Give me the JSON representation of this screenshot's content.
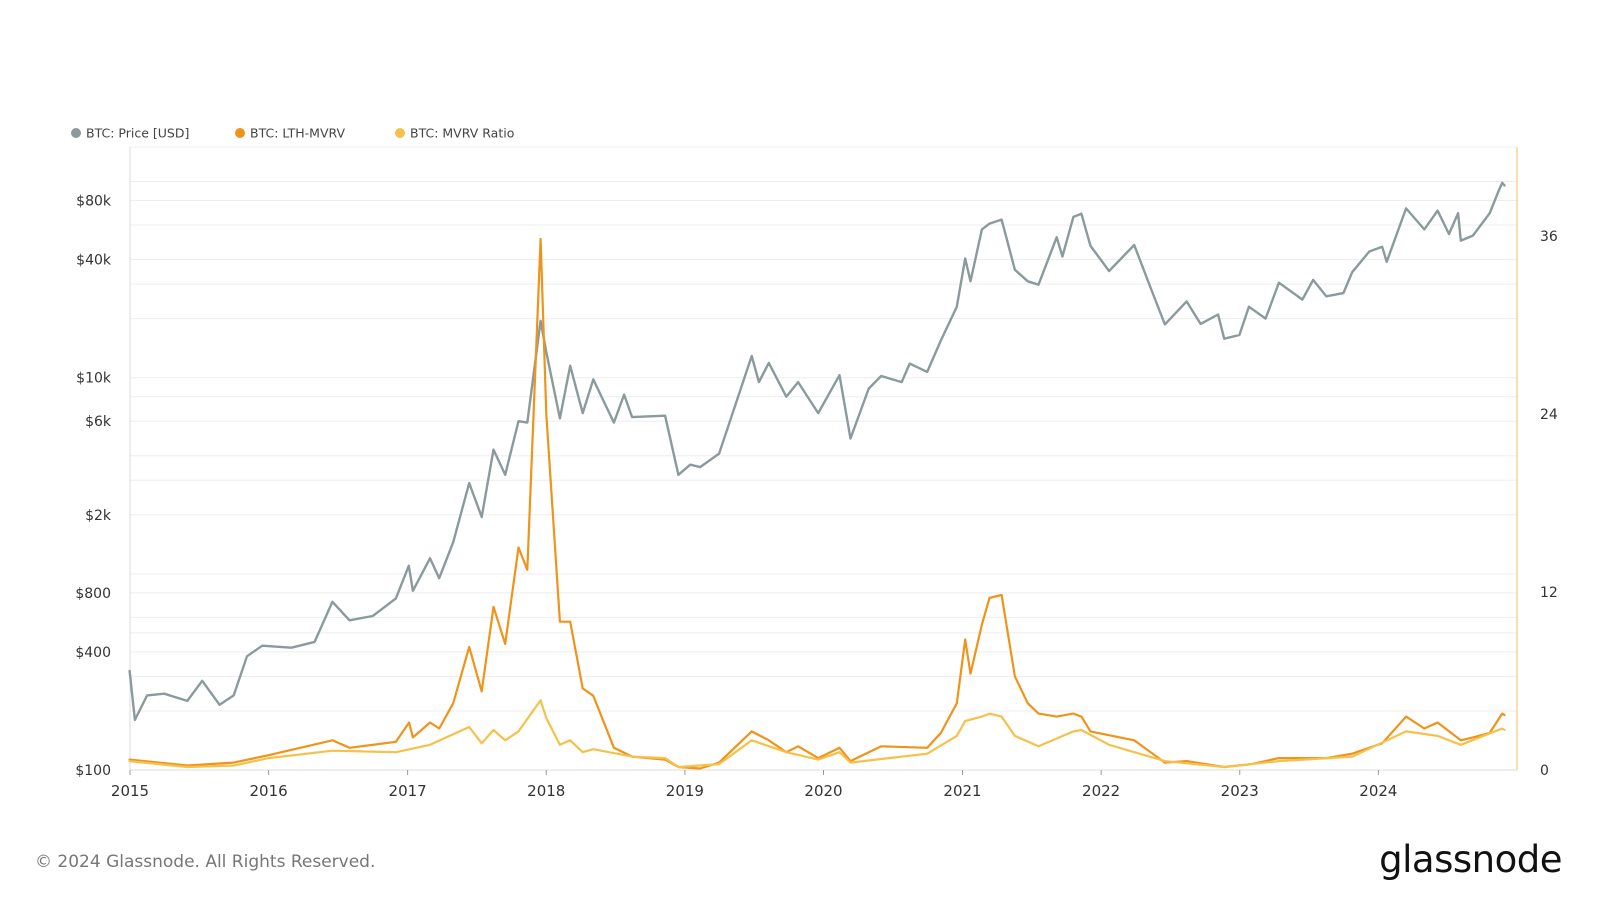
{
  "footer": {
    "copyright": "© 2024 Glassnode. All Rights Reserved.",
    "brand": "glassnode"
  },
  "colors": {
    "price": "#8b9a9c",
    "lth_mvrv": "#f0931a",
    "mvrv": "#f5c14b",
    "grid": "#ededed",
    "right_axis_line": "#f7d49a"
  },
  "chart_data": {
    "type": "line",
    "legend_position": "top-left",
    "grid": true,
    "y_left": {
      "scale": "log",
      "range": [
        100,
        150000
      ],
      "ticks": [
        {
          "value": 100,
          "label": "$100"
        },
        {
          "value": 400,
          "label": "$400"
        },
        {
          "value": 800,
          "label": "$800"
        },
        {
          "value": 2000,
          "label": "$2k"
        },
        {
          "value": 6000,
          "label": "$6k"
        },
        {
          "value": 10000,
          "label": "$10k"
        },
        {
          "value": 40000,
          "label": "$40k"
        },
        {
          "value": 80000,
          "label": "$80k"
        }
      ]
    },
    "y_right": {
      "scale": "linear",
      "range": [
        0,
        42
      ],
      "ticks": [
        {
          "value": 0,
          "label": "0"
        },
        {
          "value": 12,
          "label": "12"
        },
        {
          "value": 24,
          "label": "24"
        },
        {
          "value": 36,
          "label": "36"
        }
      ]
    },
    "x_axis": {
      "range": [
        "2015-01-01",
        "2024-12-31"
      ],
      "ticks": [
        {
          "value": "2015-01-01",
          "label": "2015"
        },
        {
          "value": "2016-01-01",
          "label": "2016"
        },
        {
          "value": "2017-01-01",
          "label": "2017"
        },
        {
          "value": "2018-01-01",
          "label": "2018"
        },
        {
          "value": "2019-01-01",
          "label": "2019"
        },
        {
          "value": "2020-01-01",
          "label": "2020"
        },
        {
          "value": "2021-01-01",
          "label": "2021"
        },
        {
          "value": "2022-01-01",
          "label": "2022"
        },
        {
          "value": "2023-01-01",
          "label": "2023"
        },
        {
          "value": "2024-01-01",
          "label": "2024"
        }
      ]
    },
    "series": [
      {
        "name": "BTC: Price [USD]",
        "axis": "left",
        "color": "#8b9a9c",
        "points": [
          [
            "2014-12-31",
            320
          ],
          [
            "2015-01-14",
            180
          ],
          [
            "2015-02-15",
            240
          ],
          [
            "2015-04-01",
            245
          ],
          [
            "2015-06-01",
            225
          ],
          [
            "2015-07-10",
            285
          ],
          [
            "2015-08-25",
            215
          ],
          [
            "2015-10-01",
            240
          ],
          [
            "2015-11-05",
            380
          ],
          [
            "2015-12-15",
            430
          ],
          [
            "2016-03-01",
            420
          ],
          [
            "2016-05-01",
            450
          ],
          [
            "2016-06-17",
            720
          ],
          [
            "2016-08-01",
            580
          ],
          [
            "2016-10-01",
            610
          ],
          [
            "2016-12-01",
            750
          ],
          [
            "2017-01-04",
            1100
          ],
          [
            "2017-01-15",
            820
          ],
          [
            "2017-03-01",
            1200
          ],
          [
            "2017-03-25",
            950
          ],
          [
            "2017-05-01",
            1450
          ],
          [
            "2017-06-12",
            2900
          ],
          [
            "2017-07-15",
            1950
          ],
          [
            "2017-08-15",
            4300
          ],
          [
            "2017-09-15",
            3200
          ],
          [
            "2017-10-20",
            6000
          ],
          [
            "2017-11-12",
            5900
          ],
          [
            "2017-12-17",
            19500
          ],
          [
            "2018-01-01",
            13500
          ],
          [
            "2018-02-06",
            6200
          ],
          [
            "2018-03-05",
            11500
          ],
          [
            "2018-04-07",
            6600
          ],
          [
            "2018-05-05",
            9800
          ],
          [
            "2018-06-28",
            5900
          ],
          [
            "2018-07-25",
            8200
          ],
          [
            "2018-08-15",
            6300
          ],
          [
            "2018-11-10",
            6400
          ],
          [
            "2018-12-15",
            3200
          ],
          [
            "2019-01-15",
            3600
          ],
          [
            "2019-02-10",
            3500
          ],
          [
            "2019-04-01",
            4100
          ],
          [
            "2019-06-26",
            12900
          ],
          [
            "2019-07-15",
            9500
          ],
          [
            "2019-08-10",
            11900
          ],
          [
            "2019-09-25",
            8000
          ],
          [
            "2019-10-26",
            9500
          ],
          [
            "2019-12-18",
            6600
          ],
          [
            "2020-02-12",
            10300
          ],
          [
            "2020-03-12",
            4900
          ],
          [
            "2020-04-29",
            8800
          ],
          [
            "2020-06-01",
            10200
          ],
          [
            "2020-07-25",
            9500
          ],
          [
            "2020-08-15",
            11800
          ],
          [
            "2020-09-30",
            10700
          ],
          [
            "2020-11-05",
            15500
          ],
          [
            "2020-12-17",
            23000
          ],
          [
            "2021-01-08",
            40500
          ],
          [
            "2021-01-22",
            31000
          ],
          [
            "2021-02-21",
            57000
          ],
          [
            "2021-03-13",
            61000
          ],
          [
            "2021-04-14",
            64000
          ],
          [
            "2021-05-19",
            35500
          ],
          [
            "2021-06-22",
            31000
          ],
          [
            "2021-07-20",
            29800
          ],
          [
            "2021-09-06",
            52000
          ],
          [
            "2021-09-21",
            41500
          ],
          [
            "2021-10-20",
            66000
          ],
          [
            "2021-11-10",
            68500
          ],
          [
            "2021-12-04",
            47000
          ],
          [
            "2022-01-22",
            35000
          ],
          [
            "2022-03-29",
            47500
          ],
          [
            "2022-05-12",
            28500
          ],
          [
            "2022-06-18",
            18700
          ],
          [
            "2022-08-14",
            24500
          ],
          [
            "2022-09-20",
            18800
          ],
          [
            "2022-11-05",
            21000
          ],
          [
            "2022-11-21",
            15800
          ],
          [
            "2022-12-31",
            16500
          ],
          [
            "2023-01-25",
            23000
          ],
          [
            "2023-03-10",
            20000
          ],
          [
            "2023-04-14",
            30500
          ],
          [
            "2023-06-15",
            25000
          ],
          [
            "2023-07-13",
            31500
          ],
          [
            "2023-08-17",
            26000
          ],
          [
            "2023-10-01",
            27000
          ],
          [
            "2023-10-24",
            34500
          ],
          [
            "2023-12-08",
            44000
          ],
          [
            "2024-01-11",
            46500
          ],
          [
            "2024-01-23",
            39000
          ],
          [
            "2024-03-14",
            73000
          ],
          [
            "2024-05-01",
            57000
          ],
          [
            "2024-06-05",
            71000
          ],
          [
            "2024-07-05",
            54000
          ],
          [
            "2024-07-29",
            69000
          ],
          [
            "2024-08-05",
            50000
          ],
          [
            "2024-09-06",
            53000
          ],
          [
            "2024-10-20",
            69000
          ],
          [
            "2024-11-13",
            90000
          ],
          [
            "2024-11-22",
            98500
          ],
          [
            "2024-11-28",
            95500
          ]
        ]
      },
      {
        "name": "BTC: LTH-MVRV",
        "axis": "right",
        "color": "#f0931a",
        "points": [
          [
            "2014-12-31",
            0.7
          ],
          [
            "2015-06-01",
            0.3
          ],
          [
            "2015-10-01",
            0.5
          ],
          [
            "2016-01-01",
            1.0
          ],
          [
            "2016-06-17",
            2.0
          ],
          [
            "2016-08-01",
            1.5
          ],
          [
            "2016-12-01",
            1.9
          ],
          [
            "2017-01-05",
            3.2
          ],
          [
            "2017-01-15",
            2.2
          ],
          [
            "2017-03-01",
            3.2
          ],
          [
            "2017-03-25",
            2.8
          ],
          [
            "2017-05-01",
            4.5
          ],
          [
            "2017-06-12",
            8.3
          ],
          [
            "2017-07-15",
            5.3
          ],
          [
            "2017-08-15",
            11.0
          ],
          [
            "2017-09-15",
            8.5
          ],
          [
            "2017-10-20",
            15.0
          ],
          [
            "2017-11-12",
            13.5
          ],
          [
            "2017-12-17",
            35.8
          ],
          [
            "2018-01-01",
            24.0
          ],
          [
            "2018-02-06",
            10.0
          ],
          [
            "2018-03-05",
            10.0
          ],
          [
            "2018-04-07",
            5.5
          ],
          [
            "2018-05-05",
            5.0
          ],
          [
            "2018-06-28",
            1.5
          ],
          [
            "2018-08-15",
            0.9
          ],
          [
            "2018-11-10",
            0.7
          ],
          [
            "2018-12-15",
            0.2
          ],
          [
            "2019-02-10",
            0.1
          ],
          [
            "2019-04-01",
            0.5
          ],
          [
            "2019-06-26",
            2.6
          ],
          [
            "2019-08-10",
            2.0
          ],
          [
            "2019-09-25",
            1.2
          ],
          [
            "2019-10-26",
            1.6
          ],
          [
            "2019-12-18",
            0.8
          ],
          [
            "2020-02-12",
            1.5
          ],
          [
            "2020-03-12",
            0.6
          ],
          [
            "2020-06-01",
            1.6
          ],
          [
            "2020-09-30",
            1.5
          ],
          [
            "2020-11-05",
            2.5
          ],
          [
            "2020-12-17",
            4.5
          ],
          [
            "2021-01-08",
            8.8
          ],
          [
            "2021-01-22",
            6.5
          ],
          [
            "2021-02-21",
            9.8
          ],
          [
            "2021-03-13",
            11.6
          ],
          [
            "2021-04-14",
            11.8
          ],
          [
            "2021-05-19",
            6.3
          ],
          [
            "2021-06-22",
            4.5
          ],
          [
            "2021-07-20",
            3.8
          ],
          [
            "2021-09-06",
            3.6
          ],
          [
            "2021-10-20",
            3.8
          ],
          [
            "2021-11-10",
            3.6
          ],
          [
            "2021-12-04",
            2.6
          ],
          [
            "2022-03-29",
            2.0
          ],
          [
            "2022-06-18",
            0.5
          ],
          [
            "2022-08-14",
            0.6
          ],
          [
            "2022-11-21",
            0.2
          ],
          [
            "2023-02-01",
            0.4
          ],
          [
            "2023-04-14",
            0.8
          ],
          [
            "2023-08-17",
            0.8
          ],
          [
            "2023-10-24",
            1.1
          ],
          [
            "2024-01-11",
            1.8
          ],
          [
            "2024-03-14",
            3.6
          ],
          [
            "2024-05-01",
            2.8
          ],
          [
            "2024-06-05",
            3.2
          ],
          [
            "2024-08-05",
            2.0
          ],
          [
            "2024-09-06",
            2.2
          ],
          [
            "2024-10-20",
            2.5
          ],
          [
            "2024-11-22",
            3.8
          ],
          [
            "2024-11-28",
            3.7
          ]
        ]
      },
      {
        "name": "BTC: MVRV Ratio",
        "axis": "right",
        "color": "#f5c14b",
        "points": [
          [
            "2014-12-31",
            0.6
          ],
          [
            "2015-06-01",
            0.2
          ],
          [
            "2015-10-01",
            0.3
          ],
          [
            "2016-01-01",
            0.8
          ],
          [
            "2016-06-17",
            1.3
          ],
          [
            "2016-12-01",
            1.2
          ],
          [
            "2017-03-01",
            1.7
          ],
          [
            "2017-06-12",
            2.9
          ],
          [
            "2017-07-15",
            1.8
          ],
          [
            "2017-08-15",
            2.7
          ],
          [
            "2017-09-15",
            2.0
          ],
          [
            "2017-10-20",
            2.6
          ],
          [
            "2017-12-17",
            4.7
          ],
          [
            "2018-01-01",
            3.5
          ],
          [
            "2018-02-06",
            1.7
          ],
          [
            "2018-03-05",
            2.0
          ],
          [
            "2018-04-07",
            1.2
          ],
          [
            "2018-05-05",
            1.4
          ],
          [
            "2018-08-15",
            0.9
          ],
          [
            "2018-11-10",
            0.8
          ],
          [
            "2018-12-15",
            0.2
          ],
          [
            "2019-04-01",
            0.4
          ],
          [
            "2019-06-26",
            2.0
          ],
          [
            "2019-09-25",
            1.2
          ],
          [
            "2019-12-18",
            0.7
          ],
          [
            "2020-02-12",
            1.2
          ],
          [
            "2020-03-12",
            0.5
          ],
          [
            "2020-09-30",
            1.1
          ],
          [
            "2020-12-17",
            2.3
          ],
          [
            "2021-01-08",
            3.3
          ],
          [
            "2021-02-21",
            3.6
          ],
          [
            "2021-03-13",
            3.8
          ],
          [
            "2021-04-14",
            3.6
          ],
          [
            "2021-05-19",
            2.3
          ],
          [
            "2021-07-20",
            1.6
          ],
          [
            "2021-10-20",
            2.6
          ],
          [
            "2021-11-10",
            2.7
          ],
          [
            "2022-01-22",
            1.7
          ],
          [
            "2022-06-18",
            0.6
          ],
          [
            "2022-11-21",
            0.2
          ],
          [
            "2023-04-14",
            0.6
          ],
          [
            "2023-10-24",
            0.9
          ],
          [
            "2024-03-14",
            2.6
          ],
          [
            "2024-06-05",
            2.3
          ],
          [
            "2024-08-05",
            1.7
          ],
          [
            "2024-11-22",
            2.8
          ],
          [
            "2024-11-28",
            2.7
          ]
        ]
      }
    ]
  }
}
